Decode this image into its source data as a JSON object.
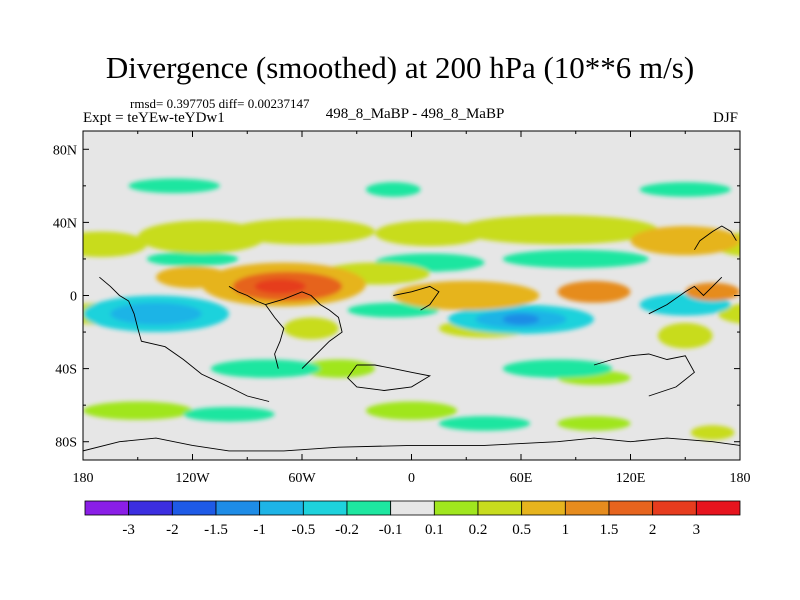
{
  "title": "Divergence (smoothed) at 200 hPa (10**6 m/s)",
  "stats": "rmsd= 0.397705 diff= 0.00237147",
  "experiment": "Expt = teYEw-teYDw1",
  "case": "498_8_MaBP - 498_8_MaBP",
  "season": "DJF",
  "chart_data": {
    "type": "heatmap",
    "x_ticks": [
      "180",
      "120W",
      "60W",
      "0",
      "60E",
      "120E",
      "180"
    ],
    "y_ticks": [
      "80N",
      "40N",
      "0",
      "40S",
      "80S"
    ],
    "xlim": [
      -180,
      180
    ],
    "ylim": [
      -90,
      90
    ],
    "colorbar": {
      "labels": [
        "-3",
        "-2",
        "-1.5",
        "-1",
        "-0.5",
        "-0.2",
        "-0.1",
        "0.1",
        "0.2",
        "0.5",
        "1",
        "1.5",
        "2",
        "3"
      ],
      "colors": [
        "#8a1ee6",
        "#3c2ee0",
        "#1e5ae6",
        "#1e8ce6",
        "#1eb4e6",
        "#1ed2dc",
        "#1ee6a0",
        "#e6e6e6",
        "#a0e61e",
        "#c8dc1e",
        "#e6b41e",
        "#e68c1e",
        "#e6641e",
        "#e63c1e",
        "#e6141e"
      ]
    },
    "blobs": [
      {
        "lon": -170,
        "lat": 28,
        "rlon": 25,
        "rlat": 7,
        "level": 9
      },
      {
        "lon": -115,
        "lat": 32,
        "rlon": 35,
        "rlat": 9,
        "level": 9
      },
      {
        "lon": -60,
        "lat": 35,
        "rlon": 40,
        "rlat": 7,
        "level": 9
      },
      {
        "lon": 10,
        "lat": 34,
        "rlon": 30,
        "rlat": 7,
        "level": 9
      },
      {
        "lon": 80,
        "lat": 36,
        "rlon": 55,
        "rlat": 8,
        "level": 9
      },
      {
        "lon": 150,
        "lat": 30,
        "rlon": 30,
        "rlat": 8,
        "level": 10
      },
      {
        "lon": -70,
        "lat": 6,
        "rlon": 45,
        "rlat": 12,
        "level": 10
      },
      {
        "lon": -68,
        "lat": 5,
        "rlon": 30,
        "rlat": 8,
        "level": 12
      },
      {
        "lon": -72,
        "lat": 5,
        "rlon": 14,
        "rlat": 4,
        "level": 13
      },
      {
        "lon": -120,
        "lat": 10,
        "rlon": 20,
        "rlat": 6,
        "level": 10
      },
      {
        "lon": 30,
        "lat": 0,
        "rlon": 40,
        "rlat": 8,
        "level": 10
      },
      {
        "lon": 100,
        "lat": 2,
        "rlon": 20,
        "rlat": 6,
        "level": 11
      },
      {
        "lon": 165,
        "lat": 2,
        "rlon": 15,
        "rlat": 5,
        "level": 11
      },
      {
        "lon": -20,
        "lat": 12,
        "rlon": 30,
        "rlat": 6,
        "level": 9
      },
      {
        "lon": -170,
        "lat": -10,
        "rlon": 22,
        "rlat": 6,
        "level": 9
      },
      {
        "lon": -55,
        "lat": -18,
        "rlon": 15,
        "rlat": 6,
        "level": 9
      },
      {
        "lon": 40,
        "lat": -18,
        "rlon": 25,
        "rlat": 5,
        "level": 9
      },
      {
        "lon": 150,
        "lat": -22,
        "rlon": 15,
        "rlat": 7,
        "level": 9
      },
      {
        "lon": -40,
        "lat": -40,
        "rlon": 20,
        "rlat": 5,
        "level": 8
      },
      {
        "lon": 100,
        "lat": -45,
        "rlon": 20,
        "rlat": 4,
        "level": 8
      },
      {
        "lon": -150,
        "lat": -63,
        "rlon": 30,
        "rlat": 5,
        "level": 8
      },
      {
        "lon": 0,
        "lat": -63,
        "rlon": 25,
        "rlat": 5,
        "level": 8
      },
      {
        "lon": 100,
        "lat": -70,
        "rlon": 20,
        "rlat": 4,
        "level": 8
      },
      {
        "lon": 165,
        "lat": -75,
        "rlon": 12,
        "rlat": 4,
        "level": 9
      },
      {
        "lon": -130,
        "lat": 60,
        "rlon": 25,
        "rlat": 4,
        "level": 6
      },
      {
        "lon": -10,
        "lat": 58,
        "rlon": 15,
        "rlat": 4,
        "level": 6
      },
      {
        "lon": 150,
        "lat": 58,
        "rlon": 25,
        "rlat": 4,
        "level": 6
      },
      {
        "lon": 10,
        "lat": 18,
        "rlon": 30,
        "rlat": 5,
        "level": 6
      },
      {
        "lon": 90,
        "lat": 20,
        "rlon": 40,
        "rlat": 5,
        "level": 6
      },
      {
        "lon": -120,
        "lat": 20,
        "rlon": 25,
        "rlat": 4,
        "level": 6
      },
      {
        "lon": -140,
        "lat": -10,
        "rlon": 40,
        "rlat": 10,
        "level": 5
      },
      {
        "lon": -140,
        "lat": -10,
        "rlon": 25,
        "rlat": 6,
        "level": 4
      },
      {
        "lon": 60,
        "lat": -13,
        "rlon": 40,
        "rlat": 8,
        "level": 5
      },
      {
        "lon": 60,
        "lat": -13,
        "rlon": 25,
        "rlat": 5,
        "level": 4
      },
      {
        "lon": 60,
        "lat": -13,
        "rlon": 10,
        "rlat": 3,
        "level": 3
      },
      {
        "lon": 150,
        "lat": -5,
        "rlon": 25,
        "rlat": 6,
        "level": 5
      },
      {
        "lon": -10,
        "lat": -8,
        "rlon": 25,
        "rlat": 4,
        "level": 6
      },
      {
        "lon": -80,
        "lat": -40,
        "rlon": 30,
        "rlat": 5,
        "level": 6
      },
      {
        "lon": 80,
        "lat": -40,
        "rlon": 30,
        "rlat": 5,
        "level": 6
      },
      {
        "lon": -100,
        "lat": -65,
        "rlon": 25,
        "rlat": 4,
        "level": 6
      },
      {
        "lon": 40,
        "lat": -70,
        "rlon": 25,
        "rlat": 4,
        "level": 6
      }
    ],
    "coastlines": [
      [
        [
          -171,
          10
        ],
        [
          -165,
          5
        ],
        [
          -160,
          0
        ],
        [
          -155,
          -3
        ],
        [
          -152,
          -10
        ],
        [
          -150,
          -18
        ],
        [
          -148,
          -25
        ],
        [
          -135,
          -28
        ],
        [
          -125,
          -35
        ],
        [
          -115,
          -43
        ],
        [
          -100,
          -50
        ],
        [
          -90,
          -55
        ],
        [
          -78,
          -58
        ]
      ],
      [
        [
          -100,
          5
        ],
        [
          -95,
          2
        ],
        [
          -90,
          0
        ],
        [
          -85,
          -3
        ],
        [
          -80,
          -5
        ],
        [
          -75,
          -12
        ],
        [
          -70,
          -18
        ],
        [
          -72,
          -25
        ],
        [
          -75,
          -32
        ],
        [
          -73,
          -40
        ]
      ],
      [
        [
          -80,
          -5
        ],
        [
          -70,
          -2
        ],
        [
          -60,
          2
        ],
        [
          -55,
          0
        ],
        [
          -50,
          -5
        ],
        [
          -45,
          -8
        ],
        [
          -40,
          -12
        ],
        [
          -38,
          -20
        ],
        [
          -45,
          -25
        ],
        [
          -50,
          -30
        ],
        [
          -55,
          -35
        ],
        [
          -60,
          -40
        ]
      ],
      [
        [
          -10,
          0
        ],
        [
          0,
          2
        ],
        [
          10,
          5
        ],
        [
          15,
          2
        ],
        [
          10,
          -5
        ],
        [
          5,
          -8
        ]
      ],
      [
        [
          -30,
          -38
        ],
        [
          -20,
          -38
        ],
        [
          -10,
          -40
        ],
        [
          0,
          -42
        ],
        [
          10,
          -44
        ],
        [
          0,
          -50
        ],
        [
          -15,
          -52
        ],
        [
          -30,
          -50
        ],
        [
          -35,
          -45
        ],
        [
          -30,
          -38
        ]
      ],
      [
        [
          -180,
          -85
        ],
        [
          -160,
          -80
        ],
        [
          -140,
          -78
        ],
        [
          -120,
          -82
        ],
        [
          -100,
          -85
        ],
        [
          -70,
          -85
        ],
        [
          -40,
          -83
        ],
        [
          0,
          -82
        ],
        [
          40,
          -82
        ],
        [
          80,
          -80
        ],
        [
          100,
          -78
        ],
        [
          120,
          -80
        ],
        [
          140,
          -78
        ],
        [
          165,
          -80
        ],
        [
          180,
          -82
        ]
      ],
      [
        [
          100,
          -38
        ],
        [
          110,
          -35
        ],
        [
          120,
          -33
        ],
        [
          130,
          -32
        ],
        [
          140,
          -35
        ],
        [
          150,
          -33
        ],
        [
          155,
          -42
        ],
        [
          145,
          -50
        ],
        [
          130,
          -55
        ]
      ],
      [
        [
          130,
          -10
        ],
        [
          140,
          -5
        ],
        [
          150,
          2
        ],
        [
          155,
          5
        ],
        [
          160,
          0
        ],
        [
          165,
          5
        ],
        [
          170,
          10
        ]
      ],
      [
        [
          155,
          25
        ],
        [
          158,
          30
        ],
        [
          165,
          35
        ],
        [
          170,
          38
        ],
        [
          175,
          35
        ],
        [
          178,
          30
        ]
      ]
    ]
  }
}
